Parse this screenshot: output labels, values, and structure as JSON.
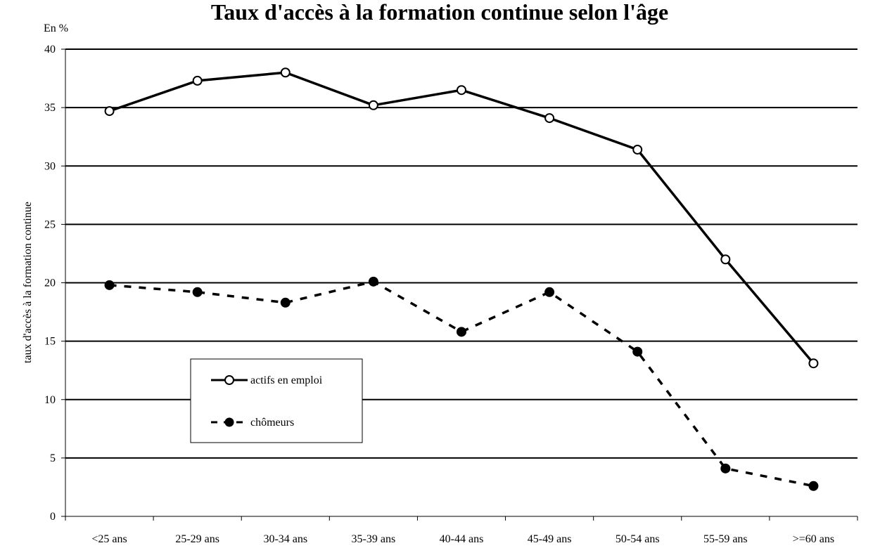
{
  "chart_data": {
    "type": "line",
    "title": "Taux d'accès à la formation continue selon l'âge",
    "unit_label": "En %",
    "ylabel": "taux d'accès à la formation continue",
    "xlabel": "",
    "categories": [
      "<25 ans",
      "25-29 ans",
      "30-34 ans",
      "35-39 ans",
      "40-44 ans",
      "45-49 ans",
      "50-54 ans",
      "55-59 ans",
      ">=60 ans"
    ],
    "ylim": [
      0,
      40
    ],
    "yticks": [
      "0",
      "5",
      "10",
      "15",
      "20",
      "25",
      "30",
      "35",
      "40"
    ],
    "grid": true,
    "legend_position": "bottom-left",
    "series": [
      {
        "name": "actifs en emploi",
        "style": "solid",
        "marker": "open-circle",
        "color": "#000000",
        "values": [
          34.7,
          37.3,
          38.0,
          35.2,
          36.5,
          34.1,
          31.4,
          22.0,
          13.1
        ]
      },
      {
        "name": "chômeurs",
        "style": "dashed",
        "marker": "filled-circle",
        "color": "#000000",
        "values": [
          19.8,
          19.2,
          18.3,
          20.1,
          15.8,
          19.2,
          14.1,
          4.1,
          2.6
        ]
      }
    ]
  }
}
